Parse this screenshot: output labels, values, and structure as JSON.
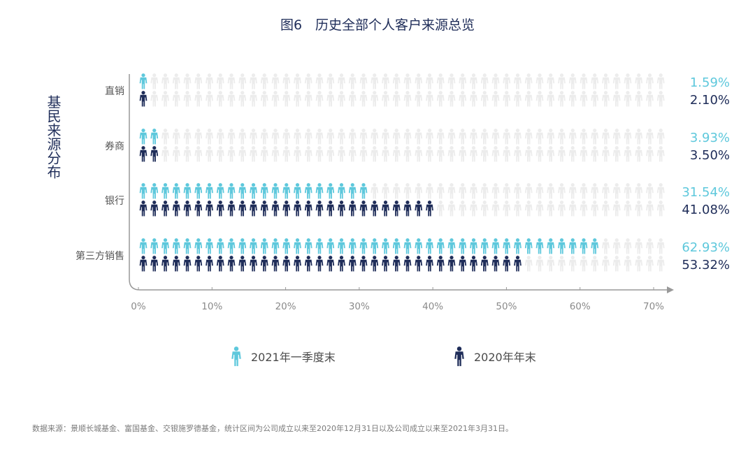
{
  "chart_data": {
    "type": "bar",
    "title": "图6　历史全部个人客户来源总览",
    "ylabel": "基民来源分布",
    "categories": [
      "直销",
      "券商",
      "银行",
      "第三方销售"
    ],
    "series": [
      {
        "name": "2021年一季度末",
        "values": [
          1.59,
          3.93,
          31.54,
          62.93
        ],
        "labels": [
          "1.59%",
          "3.93%",
          "31.54%",
          "62.93%"
        ]
      },
      {
        "name": "2020年年末",
        "values": [
          2.1,
          3.5,
          41.08,
          53.32
        ],
        "labels": [
          "2.10%",
          "3.50%",
          "41.08%",
          "53.32%"
        ]
      }
    ],
    "xlim": [
      0,
      70
    ],
    "xticks": [
      "0%",
      "10%",
      "20%",
      "30%",
      "40%",
      "50%",
      "60%",
      "70%"
    ],
    "legend_position": "bottom",
    "footnote": "数据来源：景顺长城基金、富国基金、交银施罗德基金，统计区间为公司成立以来至2020年12月31日以及公司成立以来至2021年3月31日。"
  },
  "colors": {
    "series_2021": "#5ec8dc",
    "series_2020": "#1f2d59",
    "empty_icon": "#ececec",
    "axis": "#999999"
  },
  "icon": "person-icon"
}
